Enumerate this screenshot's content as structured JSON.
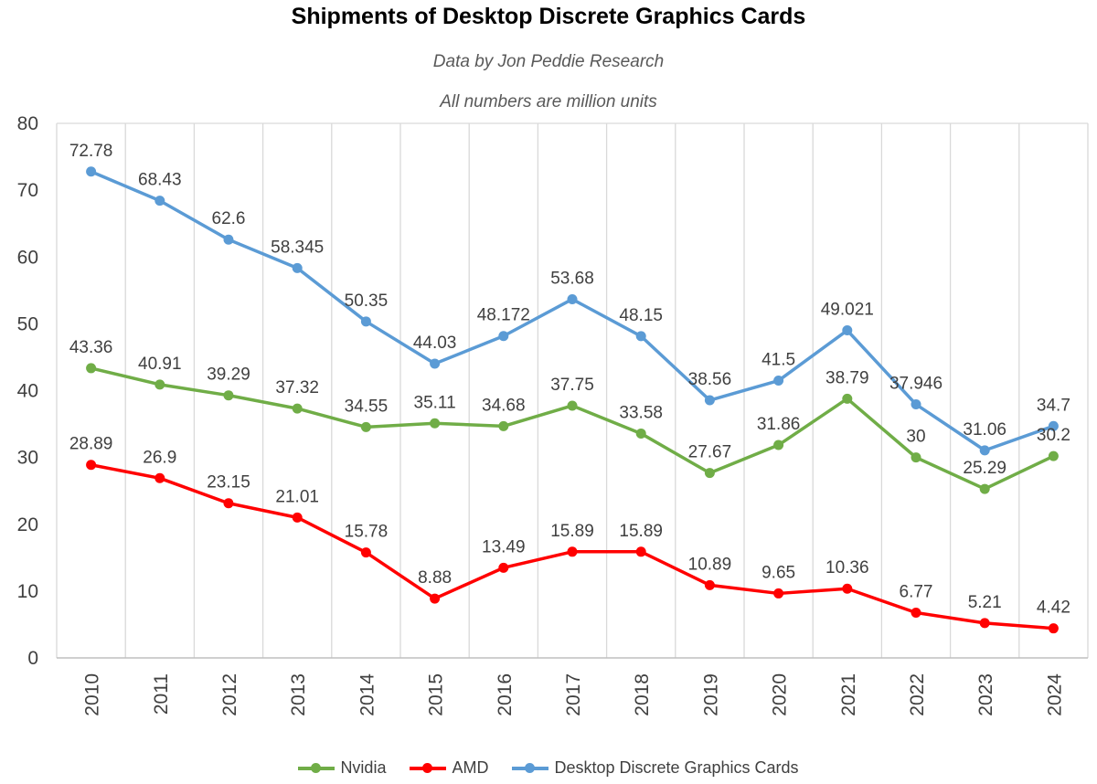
{
  "chart_data": {
    "type": "line",
    "title": "Shipments of Desktop Discrete Graphics Cards",
    "subtitle1": "Data by Jon Peddie Research",
    "subtitle2": "All numbers are million units",
    "categories": [
      "2010",
      "2011",
      "2012",
      "2013",
      "2014",
      "2015",
      "2016",
      "2017",
      "2018",
      "2019",
      "2020",
      "2021",
      "2022",
      "2023",
      "2024"
    ],
    "series": [
      {
        "name": "Nvidia",
        "color": "#70AD47",
        "values": [
          43.36,
          40.91,
          39.29,
          37.32,
          34.55,
          35.11,
          34.68,
          37.75,
          33.58,
          27.67,
          31.86,
          38.79,
          30,
          25.29,
          30.2
        ]
      },
      {
        "name": "AMD",
        "color": "#FF0000",
        "values": [
          28.89,
          26.9,
          23.15,
          21.01,
          15.78,
          8.88,
          13.49,
          15.89,
          15.89,
          10.89,
          9.65,
          10.36,
          6.77,
          5.21,
          4.42
        ]
      },
      {
        "name": "Desktop Discrete Graphics Cards",
        "color": "#5B9BD5",
        "values": [
          72.78,
          68.43,
          62.6,
          58.345,
          50.35,
          44.03,
          48.172,
          53.68,
          48.15,
          38.56,
          41.5,
          49.021,
          37.946,
          31.06,
          34.7
        ]
      }
    ],
    "ylim": [
      0,
      80
    ],
    "yticks": [
      0,
      10,
      20,
      30,
      40,
      50,
      60,
      70,
      80
    ],
    "grid": "vertical-only",
    "data_labels": true,
    "legend_position": "bottom",
    "marker": "circle"
  },
  "colors": {
    "grid": "#D9D9D9",
    "axis": "#BFBFBF",
    "tick_text": "#404040",
    "label_text": "#404040",
    "subtitle_text": "#595959"
  }
}
